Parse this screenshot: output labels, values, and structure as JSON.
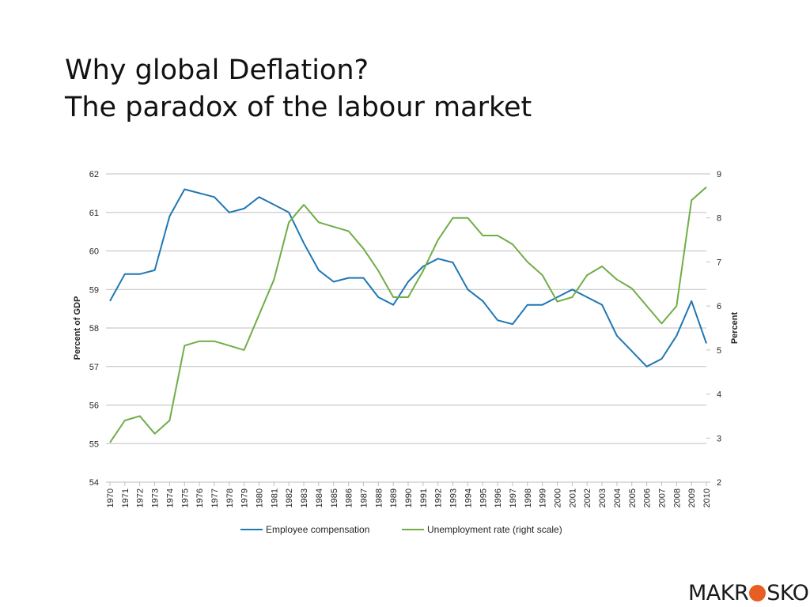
{
  "slide": {
    "title_line1": "Why global Deflation?",
    "title_line2": "The paradox of the labour market",
    "logo_left": "MAKR",
    "logo_right": "SKOP",
    "colors": {
      "series1": "#1f77b4",
      "series2": "#70ad47",
      "grid": "#bfbfbf",
      "text": "#262626",
      "accent": "#e85d22"
    }
  },
  "chart_data": {
    "type": "line",
    "title": "",
    "xlabel": "",
    "ylabel": "Percent of GDP",
    "y2label": "Percent",
    "ylim": [
      54,
      62
    ],
    "y2lim": [
      2,
      9
    ],
    "yticks": [
      54,
      55,
      56,
      57,
      58,
      59,
      60,
      61,
      62
    ],
    "y2ticks": [
      2,
      3,
      4,
      5,
      6,
      7,
      8,
      9
    ],
    "grid": true,
    "legend": "bottom",
    "x": [
      "1970",
      "1971",
      "1972",
      "1973",
      "1974",
      "1975",
      "1976",
      "1977",
      "1978",
      "1979",
      "1980",
      "1981",
      "1982",
      "1983",
      "1984",
      "1985",
      "1986",
      "1987",
      "1988",
      "1989",
      "1990",
      "1991",
      "1992",
      "1993",
      "1994",
      "1995",
      "1996",
      "1997",
      "1998",
      "1999",
      "2000",
      "2001",
      "2002",
      "2003",
      "2004",
      "2005",
      "2006",
      "2007",
      "2008",
      "2009",
      "2010"
    ],
    "series": [
      {
        "name": "Employee compensation",
        "axis": "left",
        "values": [
          58.7,
          59.4,
          59.4,
          59.5,
          60.9,
          61.6,
          61.5,
          61.4,
          61.0,
          61.1,
          61.4,
          61.2,
          61.0,
          60.2,
          59.5,
          59.2,
          59.3,
          59.3,
          58.8,
          58.6,
          59.2,
          59.6,
          59.8,
          59.7,
          59.0,
          58.7,
          58.2,
          58.1,
          58.6,
          58.6,
          58.8,
          59.0,
          58.8,
          58.6,
          57.8,
          57.4,
          57.0,
          57.2,
          57.8,
          58.7,
          57.6
        ]
      },
      {
        "name": "Unemployment rate (right scale)",
        "axis": "right",
        "values": [
          2.9,
          3.4,
          3.5,
          3.1,
          3.4,
          5.1,
          5.2,
          5.2,
          5.1,
          5.0,
          5.8,
          6.6,
          7.9,
          8.3,
          7.9,
          7.8,
          7.7,
          7.3,
          6.8,
          6.2,
          6.2,
          6.8,
          7.5,
          8.0,
          8.0,
          7.6,
          7.6,
          7.4,
          7.0,
          6.7,
          6.1,
          6.2,
          6.7,
          6.9,
          6.6,
          6.4,
          6.0,
          5.6,
          6.0,
          8.4,
          8.7
        ]
      }
    ]
  }
}
